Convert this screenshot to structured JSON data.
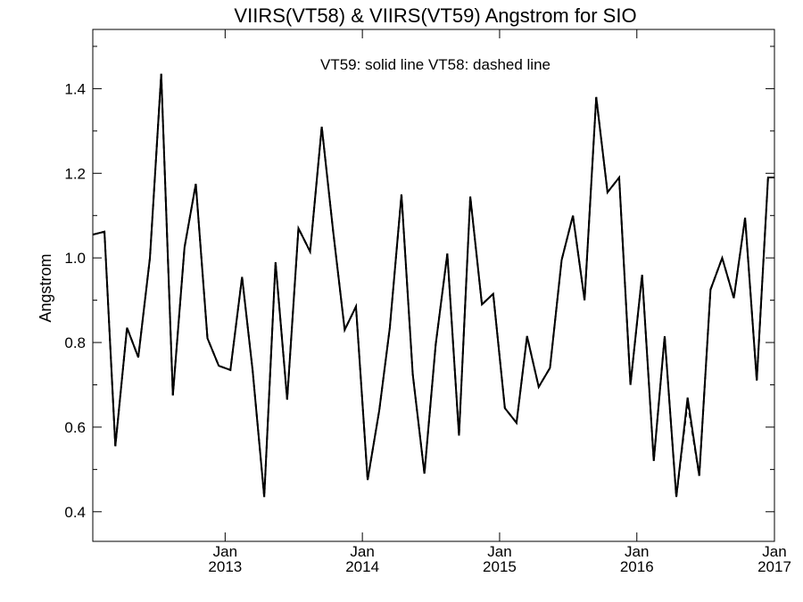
{
  "chart_data": {
    "type": "line",
    "title": "VIIRS(VT58) & VIIRS(VT59)  Angstrom for SIO",
    "annotation": "VT59: solid line   VT58: dashed line",
    "ylabel": "Angstrom",
    "xlabel": "",
    "ylim": [
      0.33,
      1.54
    ],
    "xlim": [
      "2012-01-15",
      "2017-01-01"
    ],
    "yticks": [
      "0.4",
      "0.6",
      "0.8",
      "1.0",
      "1.2",
      "1.4"
    ],
    "xticks": [
      {
        "date": "2013-01-01",
        "line1": "Jan",
        "line2": "2013"
      },
      {
        "date": "2014-01-01",
        "line1": "Jan",
        "line2": "2014"
      },
      {
        "date": "2015-01-01",
        "line1": "Jan",
        "line2": "2015"
      },
      {
        "date": "2016-01-01",
        "line1": "Jan",
        "line2": "2016"
      },
      {
        "date": "2017-01-01",
        "line1": "Jan",
        "line2": "2017"
      }
    ],
    "grid": false,
    "series": [
      {
        "name": "VT59",
        "style": "solid",
        "x": [
          "2012-01-15",
          "2012-02-15",
          "2012-03-15",
          "2012-04-15",
          "2012-05-15",
          "2012-06-15",
          "2012-07-15",
          "2012-08-15",
          "2012-09-15",
          "2012-10-15",
          "2012-11-15",
          "2012-12-15",
          "2013-01-15",
          "2013-02-15",
          "2013-03-15",
          "2013-04-15",
          "2013-05-15",
          "2013-06-15",
          "2013-07-15",
          "2013-08-15",
          "2013-09-15",
          "2013-10-15",
          "2013-11-15",
          "2013-12-15",
          "2014-01-15",
          "2014-02-15",
          "2014-03-15",
          "2014-04-15",
          "2014-05-15",
          "2014-06-15",
          "2014-07-15",
          "2014-08-15",
          "2014-09-15",
          "2014-10-15",
          "2014-11-15",
          "2014-12-15",
          "2015-01-15",
          "2015-02-15",
          "2015-03-15",
          "2015-04-15",
          "2015-05-15",
          "2015-06-15",
          "2015-07-15",
          "2015-08-15",
          "2015-09-15",
          "2015-10-15",
          "2015-11-15",
          "2015-12-15",
          "2016-01-15",
          "2016-02-15",
          "2016-03-15",
          "2016-04-15",
          "2016-05-15",
          "2016-06-15",
          "2016-07-15",
          "2016-08-15",
          "2016-09-15",
          "2016-10-15",
          "2016-11-15",
          "2016-12-15",
          "2016-12-31"
        ],
        "values": [
          1.055,
          1.062,
          0.555,
          0.835,
          0.765,
          1.0,
          1.435,
          0.675,
          1.025,
          1.175,
          0.81,
          0.745,
          0.735,
          0.955,
          0.735,
          0.435,
          0.99,
          0.665,
          1.07,
          1.015,
          1.31,
          1.065,
          0.83,
          0.885,
          0.475,
          0.64,
          0.835,
          1.15,
          0.725,
          0.49,
          0.795,
          1.01,
          0.58,
          1.145,
          0.89,
          0.915,
          0.645,
          0.61,
          0.815,
          0.695,
          0.74,
          0.995,
          1.1,
          0.9,
          1.38,
          1.155,
          1.19,
          0.7,
          0.96,
          0.52,
          0.815,
          0.435,
          0.67,
          0.485,
          0.925,
          1.0,
          0.905,
          1.095,
          0.71,
          1.19,
          1.19
        ]
      },
      {
        "name": "VT58",
        "style": "dashed",
        "x": [
          "2012-01-15",
          "2012-02-15",
          "2012-03-15",
          "2012-04-15",
          "2012-05-15",
          "2012-06-15",
          "2012-07-15",
          "2012-08-15",
          "2012-09-15",
          "2012-10-15",
          "2012-11-15",
          "2012-12-15",
          "2013-01-15",
          "2013-02-15",
          "2013-03-15",
          "2013-04-15",
          "2013-05-15",
          "2013-06-15",
          "2013-07-15",
          "2013-08-15",
          "2013-09-15",
          "2013-10-15",
          "2013-11-15",
          "2013-12-15",
          "2014-01-15",
          "2014-02-15",
          "2014-03-15",
          "2014-04-15",
          "2014-05-15",
          "2014-06-15",
          "2014-07-15",
          "2014-08-15",
          "2014-09-15",
          "2014-10-15",
          "2014-11-15",
          "2014-12-15",
          "2015-01-15",
          "2015-02-15",
          "2015-03-15",
          "2015-04-15",
          "2015-05-15",
          "2015-06-15",
          "2015-07-15",
          "2015-08-15",
          "2015-09-15",
          "2015-10-15",
          "2015-11-15",
          "2015-12-15",
          "2016-01-15",
          "2016-02-15",
          "2016-03-15",
          "2016-04-15",
          "2016-05-15",
          "2016-06-15",
          "2016-07-15",
          "2016-08-15",
          "2016-09-15",
          "2016-10-15",
          "2016-11-15",
          "2016-12-15",
          "2016-12-31"
        ],
        "values": [
          1.055,
          1.062,
          0.555,
          0.835,
          0.765,
          1.0,
          1.435,
          0.675,
          1.025,
          1.175,
          0.81,
          0.745,
          0.735,
          0.955,
          0.735,
          0.435,
          0.99,
          0.665,
          1.07,
          1.015,
          1.31,
          1.065,
          0.83,
          0.885,
          0.475,
          0.64,
          0.835,
          1.15,
          0.725,
          0.49,
          0.795,
          1.01,
          0.58,
          1.145,
          0.89,
          0.915,
          0.645,
          0.61,
          0.815,
          0.695,
          0.74,
          0.995,
          1.1,
          0.9,
          1.38,
          1.155,
          1.19,
          0.7,
          0.96,
          0.52,
          0.815,
          0.435,
          0.66,
          0.485,
          0.925,
          1.0,
          0.905,
          1.095,
          0.71,
          1.19,
          1.19
        ]
      }
    ]
  }
}
